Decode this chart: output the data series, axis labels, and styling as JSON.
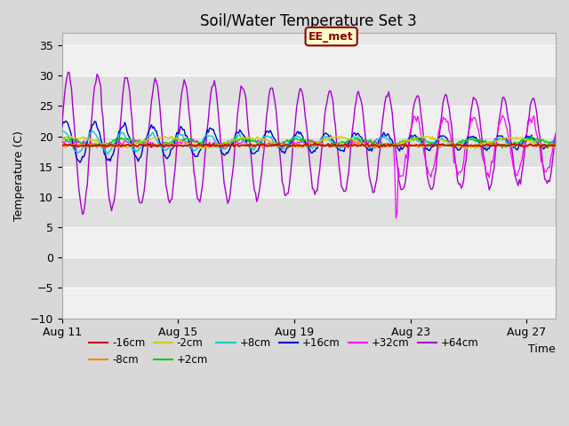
{
  "title": "Soil/Water Temperature Set 3",
  "xlabel": "Time",
  "ylabel": "Temperature (C)",
  "ylim": [
    -10,
    37
  ],
  "yticks": [
    -10,
    -5,
    0,
    5,
    10,
    15,
    20,
    25,
    30,
    35
  ],
  "xtick_labels": [
    "Aug 11",
    "Aug 15",
    "Aug 19",
    "Aug 23",
    "Aug 27"
  ],
  "xtick_days": [
    0,
    4,
    8,
    12,
    16
  ],
  "annotation_text": "EE_met",
  "series_colors": {
    "-16cm": "#cc0000",
    "-8cm": "#ff8800",
    "-2cm": "#cccc00",
    "+2cm": "#00cc00",
    "+8cm": "#00cccc",
    "+16cm": "#0000cc",
    "+32cm": "#ff00ff",
    "+64cm": "#aa00cc"
  },
  "band_colors": [
    "#f0f0f0",
    "#e0e0e0"
  ],
  "plot_bg": "#e8e8e8",
  "fig_bg": "#d8d8d8"
}
